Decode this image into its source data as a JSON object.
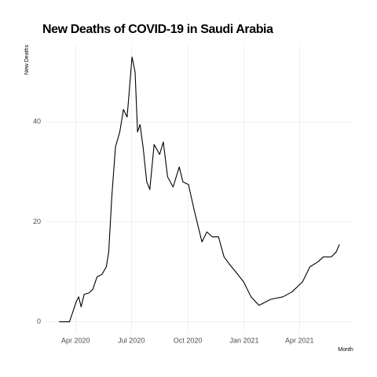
{
  "chart_data": {
    "type": "line",
    "title": "New Deaths of COVID-19 in Saudi Arabia",
    "x_label": "Month",
    "y_label": "New Deaths",
    "x": [
      "2020-03-05",
      "2020-03-22",
      "2020-04-02",
      "2020-04-06",
      "2020-04-10",
      "2020-04-15",
      "2020-04-23",
      "2020-04-29",
      "2020-05-06",
      "2020-05-14",
      "2020-05-21",
      "2020-05-25",
      "2020-05-30",
      "2020-06-05",
      "2020-06-12",
      "2020-06-18",
      "2020-06-24",
      "2020-07-02",
      "2020-07-07",
      "2020-07-11",
      "2020-07-15",
      "2020-07-20",
      "2020-07-26",
      "2020-07-31",
      "2020-08-07",
      "2020-08-16",
      "2020-08-22",
      "2020-08-29",
      "2020-09-07",
      "2020-09-17",
      "2020-09-23",
      "2020-10-02",
      "2020-10-12",
      "2020-10-24",
      "2020-11-01",
      "2020-11-10",
      "2020-11-20",
      "2020-11-29",
      "2020-12-08",
      "2020-12-18",
      "2020-12-31",
      "2021-01-12",
      "2021-01-25",
      "2021-02-13",
      "2021-03-05",
      "2021-03-20",
      "2021-04-06",
      "2021-04-18",
      "2021-05-01",
      "2021-05-10",
      "2021-05-23",
      "2021-05-31",
      "2021-06-05"
    ],
    "series": [
      {
        "name": "New Deaths",
        "color": "#000000",
        "values": [
          0,
          0,
          4,
          5,
          3,
          5.5,
          5.8,
          6.5,
          9,
          9.5,
          11,
          14,
          25,
          35,
          38,
          42.5,
          41,
          53,
          50,
          38,
          39.5,
          35,
          28,
          26.5,
          35.5,
          33.5,
          36,
          29,
          27,
          31,
          28,
          27.5,
          22,
          16,
          18,
          17,
          17,
          13,
          11.5,
          10,
          8,
          5,
          3.3,
          4.5,
          5,
          6,
          8,
          11,
          12,
          13,
          13,
          14,
          15.5
        ]
      }
    ],
    "xlim": [
      "2020-02-12",
      "2021-06-28"
    ],
    "xticks": [
      {
        "value": "2020-04-01",
        "label": "Apr 2020"
      },
      {
        "value": "2020-07-01",
        "label": "Jul 2020"
      },
      {
        "value": "2020-10-01",
        "label": "Oct 2020"
      },
      {
        "value": "2021-01-01",
        "label": "Jan 2021"
      },
      {
        "value": "2021-04-01",
        "label": "Apr 2021"
      }
    ],
    "ylim": [
      -2.4,
      55.3
    ],
    "yticks": [
      0,
      20,
      40
    ],
    "grid": true
  }
}
